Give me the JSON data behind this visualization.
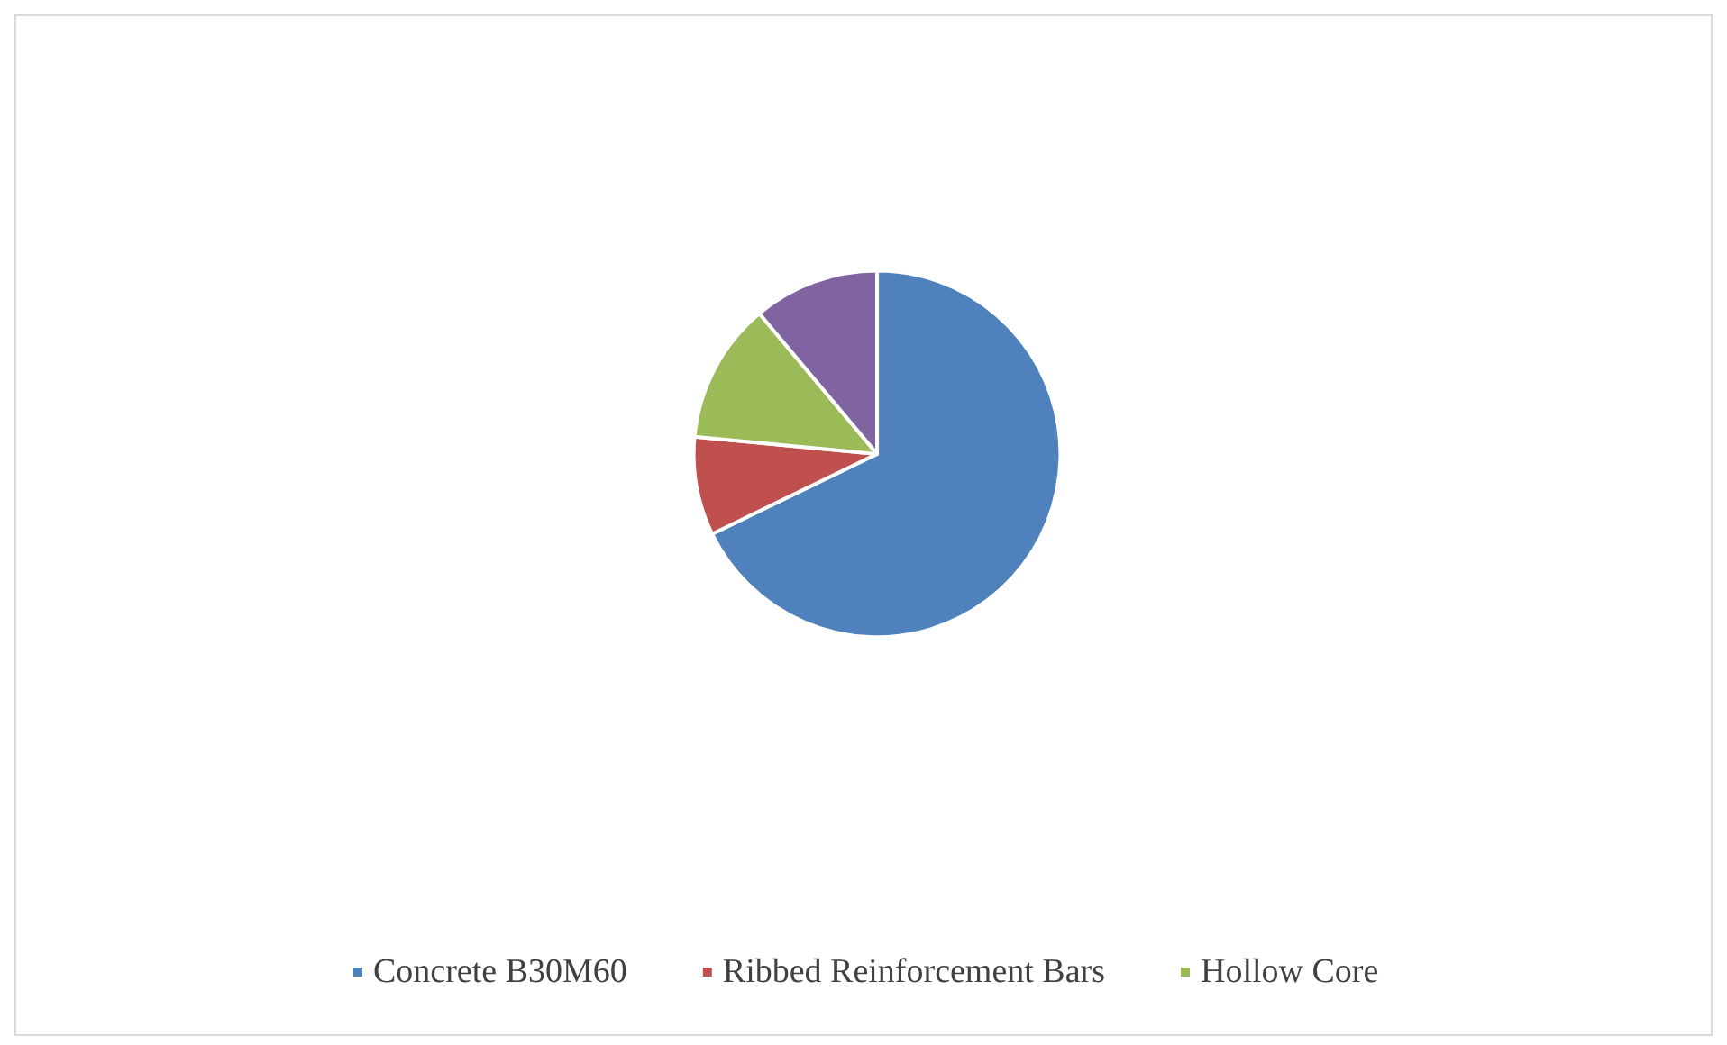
{
  "chart_data": {
    "type": "pie",
    "categories": [
      "Concrete B30M60",
      "Ribbed Reinforcement Bars",
      "Hollow Core",
      null
    ],
    "values": [
      67.8,
      8.7,
      12.4,
      11.1
    ],
    "colors": [
      "#4f81bd",
      "#c0504d",
      "#9bbb59",
      "#8064a2"
    ],
    "legend": "bottom"
  }
}
